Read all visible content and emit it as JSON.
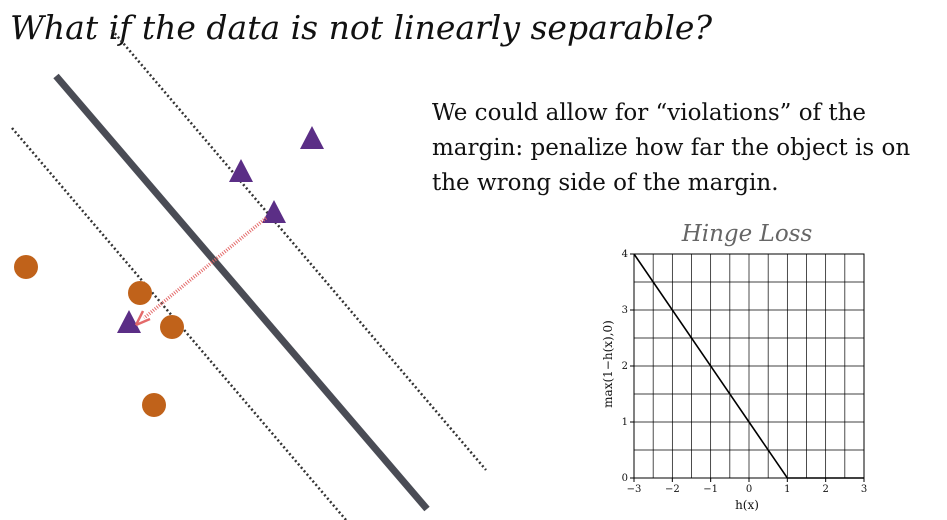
{
  "slide": {
    "title": "What if the data is not linearly separable?",
    "body": "We could allow for “violations” of the margin: penalize how far the object is on the wrong side of the margin."
  },
  "colors": {
    "class_circle": "#c0621a",
    "class_triangle": "#5b2e86",
    "separator": "#4a4c55",
    "margin": "#333333",
    "violation_arrow": "#e46a6a",
    "hinge_line": "#000000",
    "grid": "#000000"
  },
  "icons": {
    "circle_point": "orange-circle",
    "triangle_point": "purple-triangle"
  },
  "chart_data": {
    "type": "line",
    "title": "Hinge Loss",
    "xlabel": "h(x)",
    "ylabel": "max(1−h(x),0)",
    "xlim": [
      -3,
      3
    ],
    "ylim": [
      0,
      4
    ],
    "xticks": [
      -3,
      -2,
      -1,
      0,
      1,
      2,
      3
    ],
    "xtick_labels": [
      "−3",
      "−2",
      "−1",
      "0",
      "1",
      "2",
      "3"
    ],
    "yticks": [
      0,
      1,
      2,
      3,
      4
    ],
    "ytick_labels": [
      "0",
      "1",
      "2",
      "3",
      "4"
    ],
    "grid": true,
    "series": [
      {
        "x": [
          -3,
          1,
          3
        ],
        "y": [
          4,
          0,
          0
        ]
      }
    ]
  }
}
